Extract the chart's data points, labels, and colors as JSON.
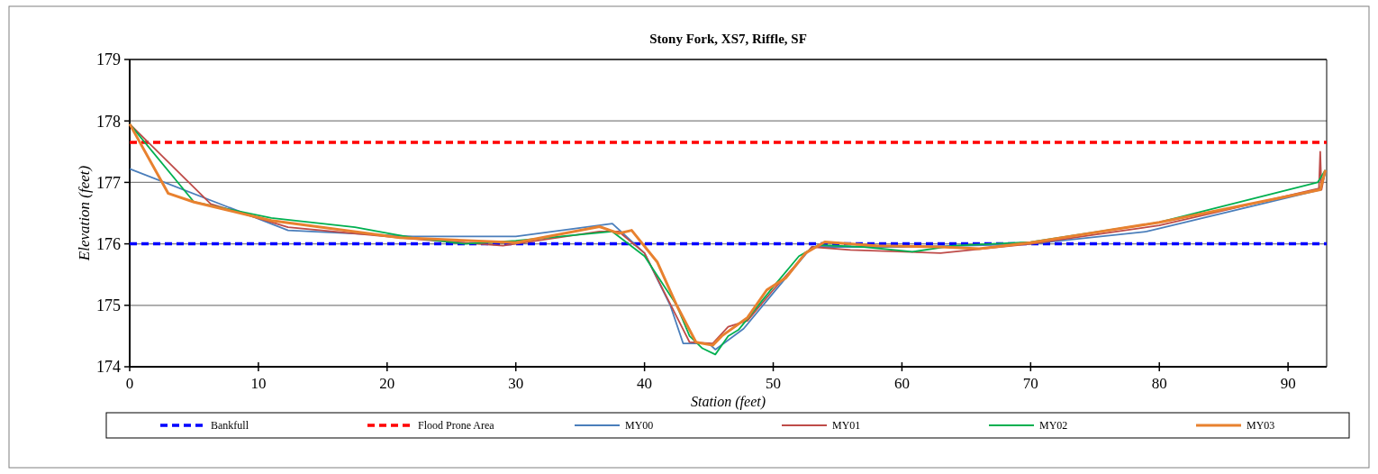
{
  "chart_data": {
    "type": "line",
    "title": "Stony Fork, XS7, Riffle, SF",
    "xlabel": "Station (feet)",
    "ylabel": "Elevation (feet)",
    "xlim": [
      0,
      93
    ],
    "xticks": [
      0,
      10,
      20,
      30,
      40,
      50,
      60,
      70,
      80,
      90
    ],
    "ylim": [
      174,
      179
    ],
    "yticks": [
      174,
      175,
      176,
      177,
      178,
      179
    ],
    "grid": "y",
    "legend": "bottom",
    "ref_lines": [
      {
        "axis": "y",
        "value": 176.0,
        "label": "Bankfull",
        "color": "#0000ff",
        "line_style": "dashed"
      },
      {
        "axis": "y",
        "value": 177.65,
        "label": "Flood Prone Area",
        "color": "#ff0000",
        "line_style": "dashed"
      }
    ],
    "series": [
      {
        "name": "MY00",
        "color": "#4a7ebb",
        "x": [
          0,
          12.3,
          22,
          30,
          37.5,
          40,
          42,
          43,
          45,
          45.5,
          47.7,
          50,
          53,
          60,
          65,
          70,
          79,
          92.5,
          92.9
        ],
        "values": [
          177.22,
          176.22,
          176.12,
          176.12,
          176.33,
          175.85,
          175.0,
          174.38,
          174.38,
          174.28,
          174.62,
          175.2,
          175.95,
          175.95,
          175.97,
          176.0,
          176.2,
          176.88,
          177.17
        ]
      },
      {
        "name": "MY01",
        "color": "#be4b48",
        "x": [
          0,
          6.3,
          12.3,
          22,
          29,
          36.5,
          38,
          40,
          43.5,
          45.3,
          46.5,
          48,
          50,
          53,
          56,
          63,
          70,
          80,
          92.4,
          92.5,
          92.6,
          92.9
        ],
        "values": [
          177.95,
          176.65,
          176.27,
          176.08,
          175.97,
          176.2,
          176.2,
          175.85,
          174.4,
          174.38,
          174.65,
          174.75,
          175.25,
          175.95,
          175.9,
          175.85,
          176.0,
          176.3,
          176.9,
          177.5,
          176.88,
          177.2
        ]
      },
      {
        "name": "MY02",
        "color": "#00b050",
        "x": [
          0,
          5,
          11,
          17.5,
          22,
          26,
          30,
          37.5,
          40,
          42.5,
          43.5,
          44.5,
          45.5,
          46.5,
          47.3,
          50,
          52,
          53.5,
          57,
          60.8,
          64,
          70,
          80,
          92.3,
          92.9
        ],
        "values": [
          177.95,
          176.68,
          176.42,
          176.27,
          176.1,
          176.0,
          176.05,
          176.2,
          175.8,
          175.0,
          174.5,
          174.3,
          174.2,
          174.5,
          174.6,
          175.3,
          175.8,
          175.98,
          175.95,
          175.87,
          175.97,
          176.03,
          176.35,
          177.0,
          177.2
        ]
      },
      {
        "name": "MY03",
        "color": "#e8812f",
        "x": [
          0,
          3,
          5,
          11,
          21,
          30,
          36.5,
          38,
          39,
          41,
          42.5,
          44,
          45.3,
          46,
          48,
          49.5,
          51,
          52.5,
          54,
          58,
          63,
          66,
          70,
          80,
          92.5,
          92.9
        ],
        "values": [
          177.95,
          176.82,
          176.68,
          176.38,
          176.1,
          176.02,
          176.28,
          176.17,
          176.22,
          175.7,
          175.0,
          174.4,
          174.35,
          174.5,
          174.8,
          175.25,
          175.45,
          175.85,
          176.03,
          175.97,
          175.95,
          175.92,
          176.02,
          176.35,
          176.88,
          177.2
        ]
      }
    ]
  }
}
